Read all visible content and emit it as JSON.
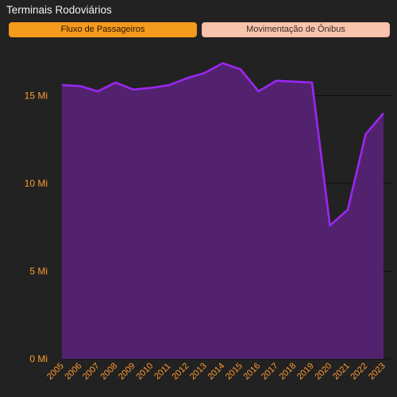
{
  "header": {
    "title": "Terminais Rodoviários"
  },
  "tabs": [
    {
      "label": "Fluxo de Passageiros",
      "active": true
    },
    {
      "label": "Movimentação de Ônibus",
      "active": false
    }
  ],
  "colors": {
    "background": "#222222",
    "accent_orange": "#f49a1c",
    "inactive_tab": "#f8c4ad",
    "area_fill": "#52226f",
    "line": "#9b27f0",
    "tick_text": "#ff9b2e"
  },
  "chart_data": {
    "type": "area",
    "title": "",
    "xlabel": "",
    "ylabel": "",
    "x": [
      "2005",
      "2006",
      "2007",
      "2008",
      "2009",
      "2010",
      "2011",
      "2012",
      "2013",
      "2014",
      "2015",
      "2016",
      "2017",
      "2018",
      "2019",
      "2020",
      "2021",
      "2022",
      "2023"
    ],
    "series": [
      {
        "values": [
          15.6,
          15.55,
          15.25,
          15.75,
          15.35,
          15.45,
          15.6,
          16.0,
          16.3,
          16.85,
          16.5,
          15.25,
          15.85,
          15.8,
          15.75,
          7.6,
          8.5,
          12.8,
          14.0
        ]
      }
    ],
    "ylim": [
      0,
      17.8
    ],
    "yticks": [
      {
        "value": 0,
        "label": "0 Mi"
      },
      {
        "value": 5,
        "label": "5 Mi"
      },
      {
        "value": 10,
        "label": "10 Mi"
      },
      {
        "value": 15,
        "label": "15 Mi"
      }
    ],
    "grid": true,
    "legend": "none"
  }
}
